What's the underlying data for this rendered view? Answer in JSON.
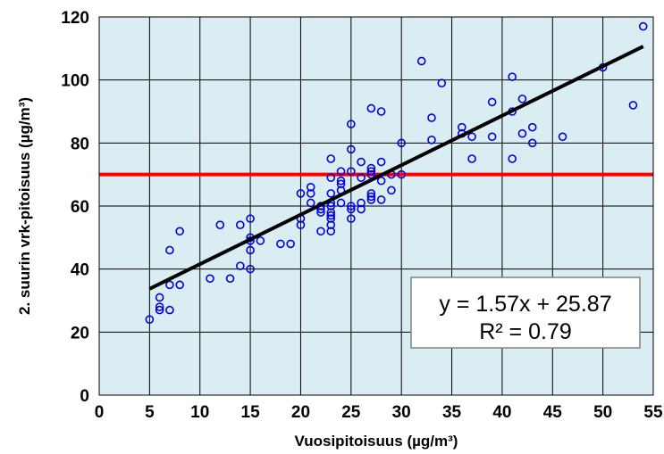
{
  "chart_data": {
    "type": "scatter",
    "title": "",
    "xlabel": "Vuosipitoisuus (µg/m³)",
    "ylabel": "2. suurin vrk-pitoisuus (µg/m³)",
    "xlim": [
      0,
      55
    ],
    "ylim": [
      0,
      120
    ],
    "x_ticks": [
      "0",
      "5",
      "10",
      "15",
      "20",
      "25",
      "30",
      "35",
      "40",
      "45",
      "50",
      "55"
    ],
    "y_ticks": [
      "0",
      "20",
      "40",
      "60",
      "80",
      "100",
      "120"
    ],
    "grid": true,
    "background_color": "#d9edf3",
    "marker_color": "#0000e6",
    "trendline": {
      "slope": 1.57,
      "intercept": 25.87,
      "x_range": [
        5,
        54
      ],
      "color": "#000000"
    },
    "limit_line": {
      "y": 70,
      "color": "#ff0000"
    },
    "annotation": {
      "equation": "y = 1.57x + 25.87",
      "r_squared": "R² = 0.79"
    },
    "points": [
      [
        5,
        24
      ],
      [
        6,
        27
      ],
      [
        6,
        28
      ],
      [
        6,
        31
      ],
      [
        7,
        27
      ],
      [
        7,
        35
      ],
      [
        7,
        46
      ],
      [
        8,
        35
      ],
      [
        8,
        52
      ],
      [
        11,
        37
      ],
      [
        12,
        54
      ],
      [
        13,
        37
      ],
      [
        14,
        41
      ],
      [
        14,
        54
      ],
      [
        15,
        40
      ],
      [
        15,
        46
      ],
      [
        15,
        49
      ],
      [
        15,
        50
      ],
      [
        15,
        56
      ],
      [
        16,
        49
      ],
      [
        18,
        48
      ],
      [
        19,
        48
      ],
      [
        20,
        54
      ],
      [
        20,
        56
      ],
      [
        20,
        64
      ],
      [
        21,
        61
      ],
      [
        21,
        64
      ],
      [
        21,
        66
      ],
      [
        22,
        52
      ],
      [
        22,
        58
      ],
      [
        22,
        59
      ],
      [
        22,
        60
      ],
      [
        23,
        52
      ],
      [
        23,
        54
      ],
      [
        23,
        56
      ],
      [
        23,
        57
      ],
      [
        23,
        58
      ],
      [
        23,
        60
      ],
      [
        23,
        61
      ],
      [
        23,
        64
      ],
      [
        23,
        69
      ],
      [
        23,
        75
      ],
      [
        24,
        61
      ],
      [
        24,
        65
      ],
      [
        24,
        67
      ],
      [
        24,
        68
      ],
      [
        24,
        71
      ],
      [
        25,
        56
      ],
      [
        25,
        59
      ],
      [
        25,
        60
      ],
      [
        25,
        71
      ],
      [
        25,
        78
      ],
      [
        25,
        86
      ],
      [
        26,
        59
      ],
      [
        26,
        61
      ],
      [
        26,
        69
      ],
      [
        26,
        74
      ],
      [
        27,
        62
      ],
      [
        27,
        63
      ],
      [
        27,
        64
      ],
      [
        27,
        70
      ],
      [
        27,
        71
      ],
      [
        27,
        72
      ],
      [
        27,
        91
      ],
      [
        28,
        62
      ],
      [
        28,
        68
      ],
      [
        28,
        74
      ],
      [
        28,
        90
      ],
      [
        29,
        65
      ],
      [
        29,
        70
      ],
      [
        30,
        70
      ],
      [
        30,
        80
      ],
      [
        32,
        106
      ],
      [
        33,
        81
      ],
      [
        33,
        88
      ],
      [
        34,
        99
      ],
      [
        36,
        83
      ],
      [
        36,
        85
      ],
      [
        37,
        75
      ],
      [
        37,
        82
      ],
      [
        39,
        82
      ],
      [
        39,
        93
      ],
      [
        41,
        75
      ],
      [
        41,
        90
      ],
      [
        41,
        101
      ],
      [
        42,
        83
      ],
      [
        42,
        94
      ],
      [
        43,
        80
      ],
      [
        43,
        85
      ],
      [
        46,
        82
      ],
      [
        50,
        104
      ],
      [
        53,
        92
      ],
      [
        54,
        117
      ]
    ]
  }
}
